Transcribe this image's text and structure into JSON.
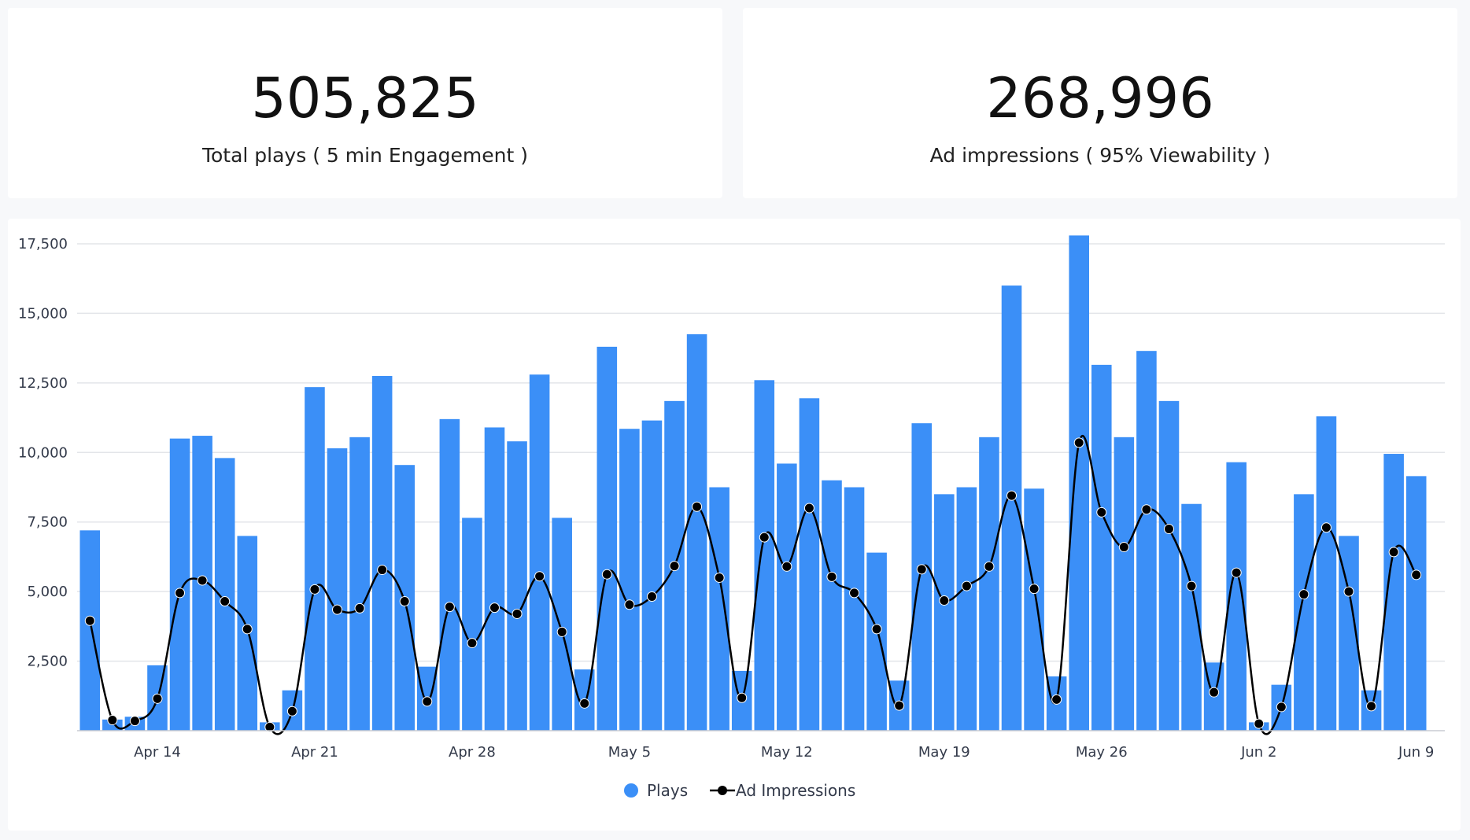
{
  "kpis": {
    "plays": {
      "value": "505,825",
      "label": "Total plays ( 5 min Engagement )"
    },
    "ads": {
      "value": "268,996",
      "label": "Ad impressions ( 95% Viewability )"
    }
  },
  "colors": {
    "plays": "#3b8ff7",
    "impressions": "#000000",
    "grid": "#e3e5e9",
    "axis": "#c9ccd2"
  },
  "chart_data": {
    "type": "bar",
    "title": "",
    "xlabel": "",
    "ylabel": "",
    "ylim": [
      0,
      17500
    ],
    "y_ticks": [
      {
        "value": 2500,
        "label": "2,500"
      },
      {
        "value": 5000,
        "label": "5,000"
      },
      {
        "value": 7500,
        "label": "7,500"
      },
      {
        "value": 10000,
        "label": "10,000"
      },
      {
        "value": 12500,
        "label": "12,500"
      },
      {
        "value": 15000,
        "label": "15,000"
      },
      {
        "value": 17500,
        "label": "17,500"
      }
    ],
    "x_ticks": [
      {
        "index": 3,
        "label": "Apr 14"
      },
      {
        "index": 10,
        "label": "Apr 21"
      },
      {
        "index": 17,
        "label": "Apr 28"
      },
      {
        "index": 24,
        "label": "May 5"
      },
      {
        "index": 31,
        "label": "May 12"
      },
      {
        "index": 38,
        "label": "May 19"
      },
      {
        "index": 45,
        "label": "May 26"
      },
      {
        "index": 52,
        "label": "Jun 2"
      },
      {
        "index": 59,
        "label": "Jun 9"
      }
    ],
    "legend_position": "bottom-center",
    "series": [
      {
        "name": "Plays",
        "type": "bar",
        "values": [
          7200,
          400,
          500,
          2350,
          10500,
          10600,
          9800,
          7000,
          300,
          1450,
          12350,
          10150,
          10550,
          12750,
          9550,
          2300,
          11200,
          7650,
          10900,
          10400,
          12800,
          7650,
          2200,
          13800,
          10850,
          11150,
          11850,
          14250,
          8750,
          2150,
          12600,
          9600,
          11950,
          9000,
          8750,
          6400,
          1800,
          11050,
          8500,
          8750,
          10550,
          16000,
          8700,
          1950,
          17800,
          13150,
          10550,
          13650,
          11850,
          8150,
          2450,
          9650,
          300,
          1650,
          8500,
          11300,
          7000,
          1450,
          9950,
          9150
        ]
      },
      {
        "name": "Ad Impressions",
        "type": "line",
        "values": [
          3950,
          380,
          350,
          1150,
          4950,
          5400,
          4650,
          3650,
          130,
          700,
          5080,
          4350,
          4400,
          5780,
          4650,
          1050,
          4450,
          3150,
          4420,
          4200,
          5550,
          3550,
          980,
          5620,
          4530,
          4820,
          5920,
          8050,
          5500,
          1180,
          6950,
          5900,
          8000,
          5530,
          4950,
          3650,
          900,
          5800,
          4680,
          5200,
          5900,
          8450,
          5100,
          1120,
          10350,
          7850,
          6600,
          7950,
          7250,
          5200,
          1380,
          5680,
          250,
          850,
          4900,
          7300,
          5000,
          880,
          6420,
          5600
        ]
      }
    ]
  }
}
